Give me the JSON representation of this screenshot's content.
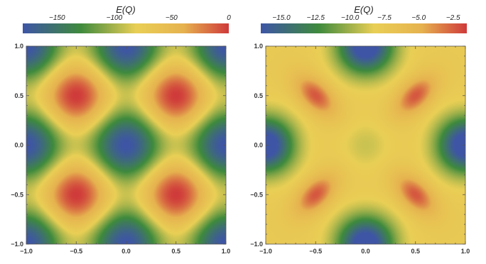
{
  "colors": {
    "low": "#3e55a6",
    "mid_low": "#3e8a3d",
    "mid": "#e9cf55",
    "mid_high": "#e6b24f",
    "high": "#cf3a3a",
    "frame": "#555555"
  },
  "chart_data": [
    {
      "type": "heatmap",
      "colorbar_title": "E(Q)",
      "colorbar_ticks": [
        {
          "value": -150,
          "label": "−150"
        },
        {
          "value": -100,
          "label": "−100"
        },
        {
          "value": -50,
          "label": "−50"
        },
        {
          "value": 0,
          "label": "0"
        }
      ],
      "color_range": [
        -180,
        0
      ],
      "x_ticks": [
        {
          "value": -1.0,
          "label": "−1.0"
        },
        {
          "value": -0.5,
          "label": "−0.5"
        },
        {
          "value": 0.0,
          "label": "0.0"
        },
        {
          "value": 0.5,
          "label": "0.5"
        },
        {
          "value": 1.0,
          "label": "1.0"
        }
      ],
      "y_ticks": [
        {
          "value": 1.0,
          "label": "1.0"
        },
        {
          "value": 0.5,
          "label": "0.5"
        },
        {
          "value": 0.0,
          "label": "0.0"
        },
        {
          "value": -0.5,
          "label": "−0.5"
        },
        {
          "value": -1.0,
          "label": "−1.0"
        }
      ],
      "xlim": [
        -1,
        1
      ],
      "ylim": [
        -1,
        1
      ],
      "grid": false,
      "maxima_at": [
        [
          0.5,
          0.5
        ],
        [
          -0.5,
          0.5
        ],
        [
          0.5,
          -0.5
        ],
        [
          -0.5,
          -0.5
        ]
      ],
      "minima_at": [
        [
          0,
          0
        ],
        [
          1,
          0
        ],
        [
          -1,
          0
        ],
        [
          0,
          1
        ],
        [
          0,
          -1
        ],
        [
          1,
          1
        ],
        [
          -1,
          1
        ],
        [
          1,
          -1
        ],
        [
          -1,
          -1
        ]
      ],
      "value_at_maxima": 0,
      "value_at_minima": -170
    },
    {
      "type": "heatmap",
      "colorbar_title": "E(Q)",
      "colorbar_ticks": [
        {
          "value": -15.0,
          "label": "−15.0"
        },
        {
          "value": -12.5,
          "label": "−12.5"
        },
        {
          "value": -10.0,
          "label": "−10.0"
        },
        {
          "value": -7.5,
          "label": "−7.5"
        },
        {
          "value": -5.0,
          "label": "−5.0"
        },
        {
          "value": -2.5,
          "label": "−2.5"
        }
      ],
      "color_range": [
        -16.5,
        -1.5
      ],
      "x_ticks": [
        {
          "value": -1.0,
          "label": "−1.0"
        },
        {
          "value": -0.5,
          "label": "−0.5"
        },
        {
          "value": 0.0,
          "label": "0.0"
        },
        {
          "value": 0.5,
          "label": "0.5"
        },
        {
          "value": 1.0,
          "label": "1.0"
        }
      ],
      "y_ticks": [
        {
          "value": 1.0,
          "label": "1.0"
        },
        {
          "value": 0.5,
          "label": "0.5"
        },
        {
          "value": 0.0,
          "label": "0.0"
        },
        {
          "value": -0.5,
          "label": "−0.5"
        },
        {
          "value": -1.0,
          "label": "−1.0"
        }
      ],
      "xlim": [
        -1,
        1
      ],
      "ylim": [
        -1,
        1
      ],
      "grid": false,
      "maxima_at": [
        [
          0.5,
          0.5
        ],
        [
          -0.5,
          0.5
        ],
        [
          0.5,
          -0.5
        ],
        [
          -0.5,
          -0.5
        ]
      ],
      "minima_at": [
        [
          1,
          0
        ],
        [
          -1,
          0
        ],
        [
          0,
          1
        ],
        [
          0,
          -1
        ]
      ],
      "value_at_maxima": -2.0,
      "value_at_minima": -15.5,
      "value_at_center": -8.5
    }
  ]
}
